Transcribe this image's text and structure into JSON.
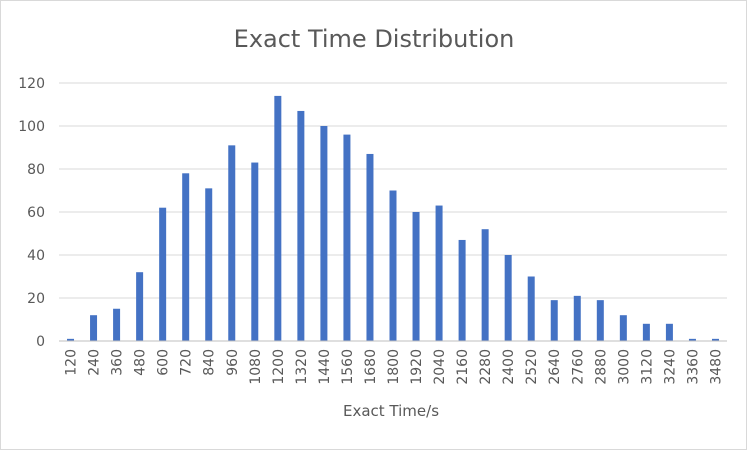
{
  "chart_data": {
    "type": "bar",
    "title": "Exact Time Distribution",
    "xlabel": "Exact Time/s",
    "ylabel": "",
    "ylim": [
      0,
      120
    ],
    "yticks": [
      "0",
      "20",
      "40",
      "60",
      "80",
      "100",
      "120"
    ],
    "grid": true,
    "legend": "none",
    "bar_color": "#4472c4",
    "categories": [
      "120",
      "240",
      "360",
      "480",
      "600",
      "720",
      "840",
      "960",
      "1080",
      "1200",
      "1320",
      "1440",
      "1560",
      "1680",
      "1800",
      "1920",
      "2040",
      "2160",
      "2280",
      "2400",
      "2520",
      "2640",
      "2760",
      "2880",
      "3000",
      "3120",
      "3240",
      "3360",
      "3480"
    ],
    "values": [
      1,
      12,
      15,
      32,
      62,
      78,
      71,
      91,
      83,
      114,
      107,
      100,
      96,
      87,
      70,
      60,
      63,
      47,
      52,
      40,
      30,
      19,
      21,
      19,
      12,
      8,
      8,
      1,
      1
    ]
  }
}
